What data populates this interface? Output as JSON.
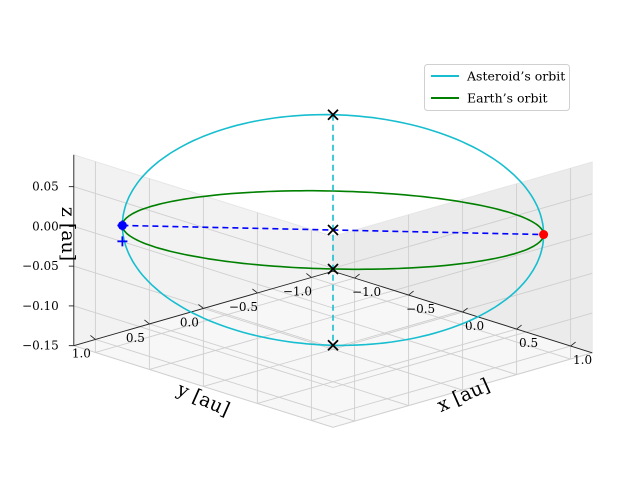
{
  "chart_data": {
    "type": "line",
    "projection": "3d",
    "xlabel": "x [au]",
    "ylabel": "y [au]",
    "zlabel": "z [au]",
    "xlim": [
      -1.2,
      1.2
    ],
    "ylim": [
      -1.2,
      1.2
    ],
    "zlim": [
      -0.15,
      0.09
    ],
    "x_ticks": [
      "−1.0",
      "−0.5",
      "0.0",
      "0.5",
      "1.0"
    ],
    "y_ticks": [
      "1.0",
      "0.5",
      "0.0",
      "−0.5",
      "−1.0"
    ],
    "z_ticks": [
      "0.05",
      "0.00",
      "−0.05",
      "−0.10",
      "−0.15"
    ],
    "grid": true,
    "legend_position": "top-right",
    "series": [
      {
        "name": "Asteroid’s orbit",
        "color": "#17becf",
        "kind": "ellipse",
        "center": [
          0,
          0,
          0
        ],
        "u": [
          1,
          -0.95,
          0
        ],
        "v": [
          0,
          0,
          0.145
        ]
      },
      {
        "name": "Earth’s orbit",
        "color": "#008000",
        "kind": "ellipse",
        "center": [
          0,
          0,
          0
        ],
        "u": [
          1,
          -0.95,
          0
        ],
        "v": [
          0.6,
          0.6,
          0
        ]
      }
    ],
    "lines": [
      {
        "from": [
          -1,
          0.95,
          0
        ],
        "to": [
          1,
          -0.95,
          0
        ],
        "color": "#0000ff",
        "style": "dashed"
      },
      {
        "from": [
          0,
          0,
          0.145
        ],
        "to": [
          0,
          0,
          -0.145
        ],
        "color": "#17becf",
        "style": "dashed"
      }
    ],
    "points": [
      {
        "name": "blue-dot",
        "x": -1,
        "y": 0.95,
        "z": 0,
        "marker": "o",
        "color": "#0000ff"
      },
      {
        "name": "red-dot",
        "x": 1,
        "y": -0.95,
        "z": 0,
        "marker": "o",
        "color": "#ff0000"
      },
      {
        "name": "blue-plus-a",
        "x": -1,
        "y": 0.95,
        "z": 0,
        "marker": "+",
        "color": "#0000ff"
      },
      {
        "name": "blue-plus-b",
        "x": -1,
        "y": 0.95,
        "z": -0.02,
        "marker": "+",
        "color": "#0000ff"
      },
      {
        "name": "x-top",
        "x": 0,
        "y": 0,
        "z": 0.145,
        "marker": "x",
        "color": "#000000"
      },
      {
        "name": "x-earth",
        "x": 0.6,
        "y": 0.6,
        "z": 0,
        "marker": "x",
        "color": "#000000"
      },
      {
        "name": "x-center",
        "x": 0,
        "y": 0,
        "z": 0,
        "marker": "x",
        "color": "#000000"
      },
      {
        "name": "x-bottom",
        "x": 0,
        "y": 0,
        "z": -0.145,
        "marker": "x",
        "color": "#000000"
      }
    ]
  }
}
